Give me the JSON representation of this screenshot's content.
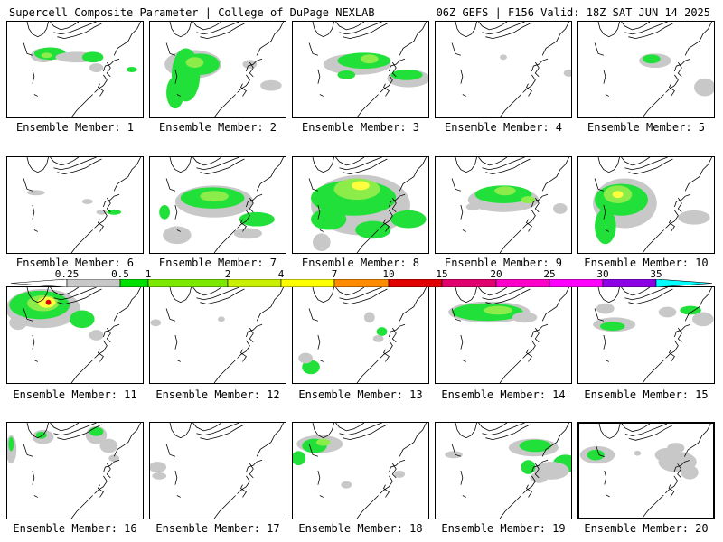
{
  "header": {
    "title": "Supercell Composite Parameter | College of DuPage NEXLAB",
    "run_info": "06Z GEFS | F156 Valid: 18Z SAT JUN 14 2025"
  },
  "caption_prefix": "Ensemble Member:",
  "members": [
    {
      "number": "1",
      "label": "Ensemble Member: 1"
    },
    {
      "number": "2",
      "label": "Ensemble Member: 2"
    },
    {
      "number": "3",
      "label": "Ensemble Member: 3"
    },
    {
      "number": "4",
      "label": "Ensemble Member: 4"
    },
    {
      "number": "5",
      "label": "Ensemble Member: 5"
    },
    {
      "number": "6",
      "label": "Ensemble Member: 6"
    },
    {
      "number": "7",
      "label": "Ensemble Member: 7"
    },
    {
      "number": "8",
      "label": "Ensemble Member: 8"
    },
    {
      "number": "9",
      "label": "Ensemble Member: 9"
    },
    {
      "number": "10",
      "label": "Ensemble Member: 10"
    },
    {
      "number": "11",
      "label": "Ensemble Member: 11"
    },
    {
      "number": "12",
      "label": "Ensemble Member: 12"
    },
    {
      "number": "13",
      "label": "Ensemble Member: 13"
    },
    {
      "number": "14",
      "label": "Ensemble Member: 14"
    },
    {
      "number": "15",
      "label": "Ensemble Member: 15"
    },
    {
      "number": "16",
      "label": "Ensemble Member: 16"
    },
    {
      "number": "17",
      "label": "Ensemble Member: 17"
    },
    {
      "number": "18",
      "label": "Ensemble Member: 18"
    },
    {
      "number": "19",
      "label": "Ensemble Member: 19"
    },
    {
      "number": "20",
      "label": "Ensemble Member: 20",
      "selected": true
    }
  ],
  "colorbar": {
    "labels": [
      "0.25",
      "0.5",
      "1",
      "2",
      "4",
      "7",
      "10",
      "15",
      "20",
      "25",
      "30",
      "35"
    ],
    "colors": [
      "#c8c8c8",
      "#00e000",
      "#7ce800",
      "#c8f000",
      "#ffff00",
      "#ff8c00",
      "#e00000",
      "#e0006e",
      "#ff00c8",
      "#ff00ff",
      "#8c00e6",
      "#b96edc",
      "#00ffff"
    ]
  },
  "colors": {
    "gray": "#c8c8c8",
    "green": "#22e03a",
    "light_green": "#8cec4a",
    "yellow": "#ffff40",
    "orange": "#ff8c00",
    "red": "#e00000"
  }
}
